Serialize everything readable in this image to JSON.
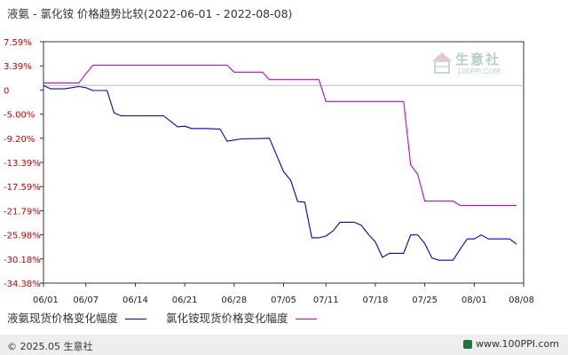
{
  "title": "液氨 - 氯化铵 价格趋势比较(2022-06-01 - 2022-08-08)",
  "footer": {
    "copyright": "© 2025.05 生意社",
    "site": "www.100PPI.com"
  },
  "watermark": {
    "name": "生意社",
    "url": "100PPI.COM"
  },
  "chart_data": {
    "type": "line",
    "title": "液氨 - 氯化铵 价格趋势比较(2022-06-01 - 2022-08-08)",
    "xlabel": "",
    "ylabel": "",
    "x_ticks": [
      "06/01",
      "06/07",
      "06/14",
      "06/21",
      "06/28",
      "07/05",
      "07/11",
      "07/18",
      "07/25",
      "08/01",
      "08/08"
    ],
    "y_ticks": [
      "7.59%",
      "3.39%",
      "0",
      "-5.00%",
      "-9.20%",
      "-13.39%",
      "-17.59%",
      "-21.79%",
      "-25.98%",
      "-30.18%",
      "-34.38%"
    ],
    "ylim": [
      -34.38,
      7.59
    ],
    "x_range": [
      "06/01",
      "08/08"
    ],
    "grid": false,
    "legend_position": "bottom",
    "series": [
      {
        "name": "液氨现货价格变化幅度",
        "color": "#0000cc",
        "points": [
          [
            "06/01",
            0.0
          ],
          [
            "06/02",
            -0.6
          ],
          [
            "06/04",
            -0.6
          ],
          [
            "06/05",
            -0.4
          ],
          [
            "06/06",
            -0.2
          ],
          [
            "06/07",
            -0.4
          ],
          [
            "06/08",
            -0.9
          ],
          [
            "06/10",
            -0.9
          ],
          [
            "06/11",
            -4.8
          ],
          [
            "06/12",
            -5.3
          ],
          [
            "06/18",
            -5.3
          ],
          [
            "06/20",
            -7.2
          ],
          [
            "06/21",
            -7.1
          ],
          [
            "06/22",
            -7.5
          ],
          [
            "06/24",
            -7.5
          ],
          [
            "06/26",
            -7.6
          ],
          [
            "06/27",
            -9.7
          ],
          [
            "06/28",
            -9.5
          ],
          [
            "06/29",
            -9.3
          ],
          [
            "07/03",
            -9.2
          ],
          [
            "07/05",
            -15.0
          ],
          [
            "07/06",
            -16.5
          ],
          [
            "07/07",
            -20.2
          ],
          [
            "07/08",
            -20.3
          ],
          [
            "07/09",
            -26.5
          ],
          [
            "07/10",
            -26.5
          ],
          [
            "07/11",
            -26.2
          ],
          [
            "07/12",
            -25.3
          ],
          [
            "07/13",
            -23.8
          ],
          [
            "07/14",
            -23.8
          ],
          [
            "07/15",
            -23.8
          ],
          [
            "07/16",
            -24.3
          ],
          [
            "07/17",
            -25.9
          ],
          [
            "07/18",
            -27.2
          ],
          [
            "07/19",
            -29.9
          ],
          [
            "07/20",
            -29.2
          ],
          [
            "07/22",
            -29.2
          ],
          [
            "07/23",
            -26.0
          ],
          [
            "07/24",
            -26.0
          ],
          [
            "07/25",
            -27.5
          ],
          [
            "07/26",
            -30.0
          ],
          [
            "07/27",
            -30.4
          ],
          [
            "07/29",
            -30.4
          ],
          [
            "07/30",
            -28.5
          ],
          [
            "07/31",
            -26.7
          ],
          [
            "08/01",
            -26.7
          ],
          [
            "08/02",
            -26.0
          ],
          [
            "08/03",
            -26.7
          ],
          [
            "08/05",
            -26.7
          ],
          [
            "08/06",
            -26.7
          ],
          [
            "08/07",
            -27.6
          ]
        ]
      },
      {
        "name": "氯化铵现货价格变化幅度",
        "color": "#cc00cc",
        "points": [
          [
            "06/01",
            0.4
          ],
          [
            "06/06",
            0.4
          ],
          [
            "06/07",
            2.0
          ],
          [
            "06/08",
            3.5
          ],
          [
            "06/27",
            3.5
          ],
          [
            "06/28",
            2.3
          ],
          [
            "07/02",
            2.3
          ],
          [
            "07/03",
            1.0
          ],
          [
            "07/10",
            1.0
          ],
          [
            "07/11",
            -2.8
          ],
          [
            "07/22",
            -2.8
          ],
          [
            "07/23",
            -13.8
          ],
          [
            "07/24",
            -15.5
          ],
          [
            "07/25",
            -20.1
          ],
          [
            "07/29",
            -20.1
          ],
          [
            "07/30",
            -20.9
          ],
          [
            "08/07",
            -20.9
          ]
        ]
      }
    ]
  }
}
